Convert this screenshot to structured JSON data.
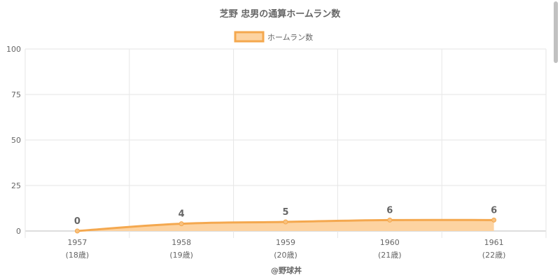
{
  "chart_data": {
    "type": "area",
    "title": "芝野 忠男の通算ホームラン数",
    "legend_position": "top",
    "categories": [
      "1957",
      "1958",
      "1959",
      "1960",
      "1961"
    ],
    "category_sublabels": [
      "(18歳)",
      "(19歳)",
      "(20歳)",
      "(21歳)",
      "(22歳)"
    ],
    "series": [
      {
        "name": "ホームラン数",
        "values": [
          0,
          4,
          5,
          6,
          6
        ],
        "data_labels": [
          "0",
          "4",
          "5",
          "6",
          "6"
        ]
      }
    ],
    "ylim": [
      0,
      100
    ],
    "yticks": [
      0,
      25,
      50,
      75,
      100
    ],
    "grid": true,
    "footer": "@野球丼",
    "colors": {
      "line": "#f4a84f",
      "fill": "#fdd3a1",
      "point": "#f8c17e",
      "grid": "#e6e6e6",
      "text": "#666666"
    }
  }
}
